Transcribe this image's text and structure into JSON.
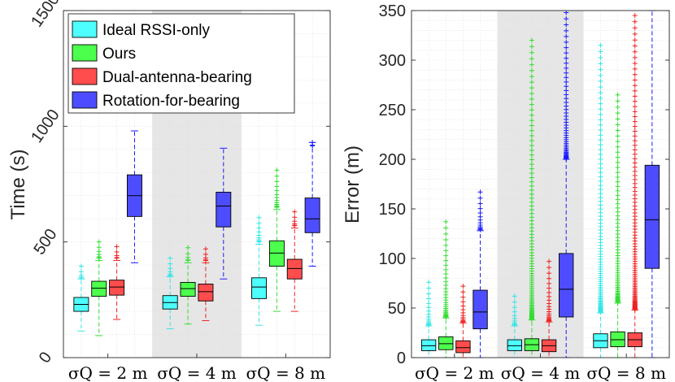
{
  "colors": {
    "Ideal RSSI-only": "#4dffff",
    "Ours": "#4dff4d",
    "Dual-antenna-bearing": "#ff4d4d",
    "Rotation-for-bearing": "#4d4dff",
    "outlier_Ideal RSSI-only": "#33e6e6",
    "outlier_Ours": "#33dd33",
    "outlier_Dual-antenna-bearing": "#ee2222",
    "outlier_Rotation-for-bearing": "#1a1aff",
    "shade": "#e6e6e6"
  },
  "chart_data": [
    {
      "type": "box",
      "title": "",
      "xlabel": "",
      "ylabel": "Time (s)",
      "ylim": [
        0,
        1500
      ],
      "yticks": [
        "0",
        "500",
        "1000",
        "1500"
      ],
      "categories": [
        "σQ = 2 m",
        "σQ = 4 m",
        "σQ = 8 m"
      ],
      "shaded_category": 1,
      "grid": true,
      "legend_position": "top-left",
      "legend": [
        "Ideal RSSI-only",
        "Ours",
        "Dual-antenna-bearing",
        "Rotation-for-bearing"
      ],
      "series": [
        {
          "name": "Ideal RSSI-only",
          "boxes": [
            {
              "whisker_low": 115,
              "q1": 200,
              "median": 230,
              "q3": 260,
              "whisker_high": 340,
              "outliers_from": 345,
              "outliers_to": 395
            },
            {
              "whisker_low": 125,
              "q1": 210,
              "median": 238,
              "q3": 268,
              "whisker_high": 350,
              "outliers_from": 355,
              "outliers_to": 430
            },
            {
              "whisker_low": 140,
              "q1": 255,
              "median": 305,
              "q3": 345,
              "whisker_high": 490,
              "outliers_from": 500,
              "outliers_to": 605
            }
          ]
        },
        {
          "name": "Ours",
          "boxes": [
            {
              "whisker_low": 95,
              "q1": 265,
              "median": 300,
              "q3": 330,
              "whisker_high": 420,
              "outliers_from": 430,
              "outliers_to": 500
            },
            {
              "whisker_low": 145,
              "q1": 265,
              "median": 298,
              "q3": 325,
              "whisker_high": 410,
              "outliers_from": 420,
              "outliers_to": 475
            },
            {
              "whisker_low": 200,
              "q1": 395,
              "median": 452,
              "q3": 505,
              "whisker_high": 640,
              "outliers_from": 650,
              "outliers_to": 810
            }
          ]
        },
        {
          "name": "Dual-antenna-bearing",
          "boxes": [
            {
              "whisker_low": 165,
              "q1": 270,
              "median": 305,
              "q3": 335,
              "whisker_high": 420,
              "outliers_from": 430,
              "outliers_to": 480
            },
            {
              "whisker_low": 160,
              "q1": 245,
              "median": 285,
              "q3": 318,
              "whisker_high": 410,
              "outliers_from": 420,
              "outliers_to": 470
            },
            {
              "whisker_low": 200,
              "q1": 340,
              "median": 385,
              "q3": 425,
              "whisker_high": 560,
              "outliers_from": 570,
              "outliers_to": 630
            }
          ]
        },
        {
          "name": "Rotation-for-bearing",
          "boxes": [
            {
              "whisker_low": 410,
              "q1": 610,
              "median": 700,
              "q3": 790,
              "whisker_high": 980,
              "outliers_from": null,
              "outliers_to": null
            },
            {
              "whisker_low": 340,
              "q1": 565,
              "median": 655,
              "q3": 715,
              "whisker_high": 905,
              "outliers_from": null,
              "outliers_to": null
            },
            {
              "whisker_low": 395,
              "q1": 540,
              "median": 600,
              "q3": 690,
              "whisker_high": 930,
              "outliers_from": 915,
              "outliers_to": 930
            }
          ]
        }
      ]
    },
    {
      "type": "box",
      "title": "",
      "xlabel": "",
      "ylabel": "Error (m)",
      "ylim": [
        0,
        350
      ],
      "yticks": [
        "0",
        "50",
        "100",
        "150",
        "200",
        "250",
        "300",
        "350"
      ],
      "categories": [
        "σQ = 2 m",
        "σQ = 4 m",
        "σQ = 8 m"
      ],
      "shaded_category": 1,
      "grid": true,
      "series": [
        {
          "name": "Ideal RSSI-only",
          "boxes": [
            {
              "whisker_low": 0,
              "q1": 7,
              "median": 12,
              "q3": 18,
              "whisker_high": 32,
              "outliers_from": 33,
              "outliers_to": 76
            },
            {
              "whisker_low": 0,
              "q1": 7,
              "median": 12,
              "q3": 18,
              "whisker_high": 32,
              "outliers_from": 33,
              "outliers_to": 62
            },
            {
              "whisker_low": 0,
              "q1": 10,
              "median": 17,
              "q3": 24,
              "whisker_high": 45,
              "outliers_from": 46,
              "outliers_to": 315
            }
          ]
        },
        {
          "name": "Ours",
          "boxes": [
            {
              "whisker_low": 0,
              "q1": 8,
              "median": 14,
              "q3": 21,
              "whisker_high": 40,
              "outliers_from": 41,
              "outliers_to": 137
            },
            {
              "whisker_low": 0,
              "q1": 7,
              "median": 13,
              "q3": 19,
              "whisker_high": 38,
              "outliers_from": 39,
              "outliers_to": 320
            },
            {
              "whisker_low": 0,
              "q1": 11,
              "median": 18,
              "q3": 26,
              "whisker_high": 55,
              "outliers_from": 56,
              "outliers_to": 265
            }
          ]
        },
        {
          "name": "Dual-antenna-bearing",
          "boxes": [
            {
              "whisker_low": 0,
              "q1": 5,
              "median": 10,
              "q3": 17,
              "whisker_high": 35,
              "outliers_from": 36,
              "outliers_to": 72
            },
            {
              "whisker_low": 0,
              "q1": 6,
              "median": 12,
              "q3": 18,
              "whisker_high": 36,
              "outliers_from": 37,
              "outliers_to": 97
            },
            {
              "whisker_low": 0,
              "q1": 11,
              "median": 18,
              "q3": 25,
              "whisker_high": 48,
              "outliers_from": 49,
              "outliers_to": 345
            }
          ]
        },
        {
          "name": "Rotation-for-bearing",
          "boxes": [
            {
              "whisker_low": 0,
              "q1": 29,
              "median": 46,
              "q3": 68,
              "whisker_high": 128,
              "outliers_from": 129,
              "outliers_to": 167
            },
            {
              "whisker_low": 0,
              "q1": 41,
              "median": 69,
              "q3": 105,
              "whisker_high": 200,
              "outliers_from": 201,
              "outliers_to": 348
            },
            {
              "whisker_low": 0,
              "q1": 90,
              "median": 139,
              "q3": 194,
              "whisker_high": 350,
              "outliers_from": null,
              "outliers_to": null
            }
          ]
        }
      ]
    }
  ]
}
